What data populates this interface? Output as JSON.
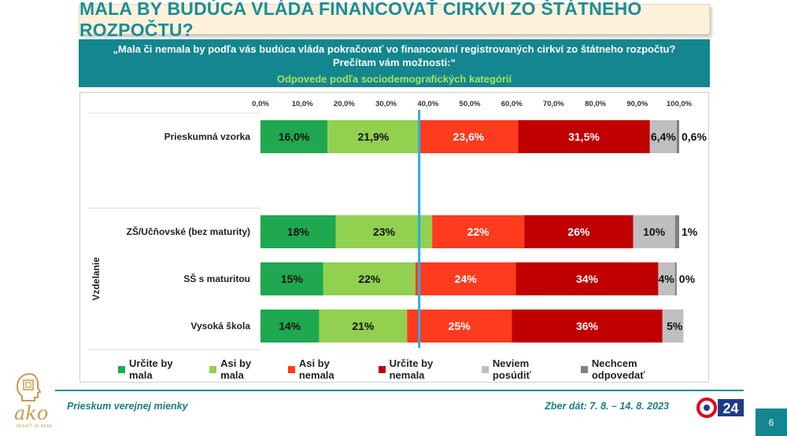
{
  "title": "MALA BY BUDÚCA VLÁDA FINANCOVAŤ CIRKVI ZO ŠTÁTNEHO ROZPOČTU?",
  "question": "„Mala či nemala by podľa vás budúca vláda pokračovať vo financovaní registrovaných cirkví zo štátneho rozpočtu? Prečítam vám možnosti:“",
  "subtitle": "Odpovede podľa sociodemografických kategórií",
  "chart_data": {
    "type": "bar",
    "orientation": "horizontal-stacked-100",
    "x_ticks": [
      "0,0%",
      "10,0%",
      "20,0%",
      "30,0%",
      "40,0%",
      "50,0%",
      "60,0%",
      "70,0%",
      "80,0%",
      "90,0%",
      "100,0%"
    ],
    "xlim": [
      0,
      100
    ],
    "reference_line_x": 37.9,
    "group_label": "Vzdelanie",
    "categories": [
      "Prieskumná vzorka",
      "ZŠ/Učňovské (bez maturity)",
      "SŠ s maturitou",
      "Vysoká škola"
    ],
    "series": [
      {
        "name": "Určite by mala",
        "color": "#1fa84f",
        "values": [
          16.0,
          18,
          15,
          14
        ],
        "labels": [
          "16,0%",
          "18%",
          "15%",
          "14%"
        ]
      },
      {
        "name": "Asi by mala",
        "color": "#92d050",
        "values": [
          21.9,
          23,
          22,
          21
        ],
        "labels": [
          "21,9%",
          "23%",
          "22%",
          "21%"
        ]
      },
      {
        "name": "Asi by nemala",
        "color": "#ff3b1f",
        "values": [
          23.6,
          22,
          24,
          25
        ],
        "labels": [
          "23,6%",
          "22%",
          "24%",
          "25%"
        ]
      },
      {
        "name": "Určite by nemala",
        "color": "#c00000",
        "values": [
          31.5,
          26,
          34,
          36
        ],
        "labels": [
          "31,5%",
          "26%",
          "34%",
          "36%"
        ]
      },
      {
        "name": "Neviem posúdiť",
        "color": "#bfbfbf",
        "values": [
          6.4,
          10,
          4,
          5
        ],
        "labels": [
          "6,4%",
          "10%",
          "4%",
          "5%"
        ]
      },
      {
        "name": "Nechcem odpovedať",
        "color": "#7f7f7f",
        "values": [
          0.6,
          1,
          0.4,
          0
        ],
        "labels": [
          "0,6%",
          "1%",
          "0%",
          ""
        ]
      }
    ]
  },
  "footer": {
    "left": "Prieskum verejnej mienky",
    "right": "Zber dát: 7. 8. – 14. 8. 2023",
    "page_number": "6",
    "logo_text": "ako",
    "logo_sub": "VEDIEŤ JE SEBE",
    "tv_logo_text": "24"
  }
}
